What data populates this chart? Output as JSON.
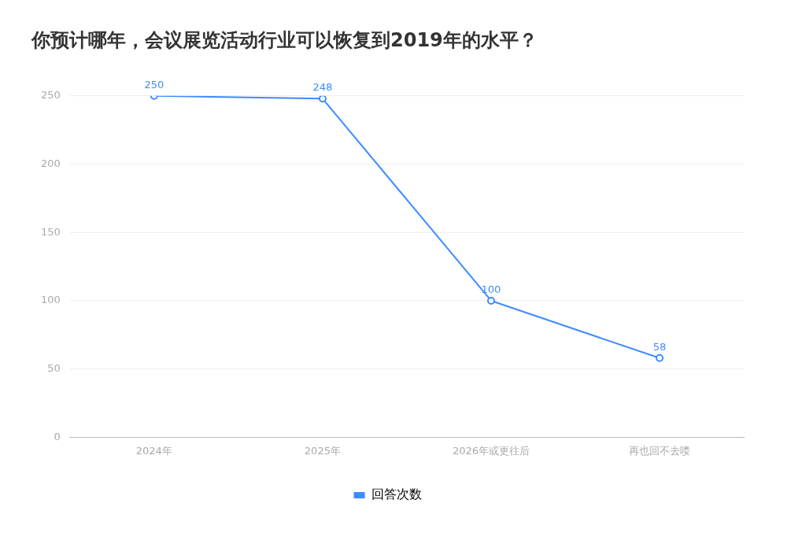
{
  "chart_data": {
    "type": "line",
    "title": "你预计哪年，会议展览活动行业可以恢复到2019年的水平？",
    "categories": [
      "2024年",
      "2025年",
      "2026年或更往后",
      "再也回不去喽"
    ],
    "series": [
      {
        "name": "回答次数",
        "color": "#3d8bff",
        "values": [
          250,
          248,
          100,
          58
        ]
      }
    ],
    "ylim": [
      0,
      250
    ],
    "yticks": [
      0,
      50,
      100,
      150,
      200,
      250
    ],
    "grid": "y",
    "legend": "bottom",
    "marker": "circle",
    "line_style": "solid",
    "data_labels": true
  }
}
